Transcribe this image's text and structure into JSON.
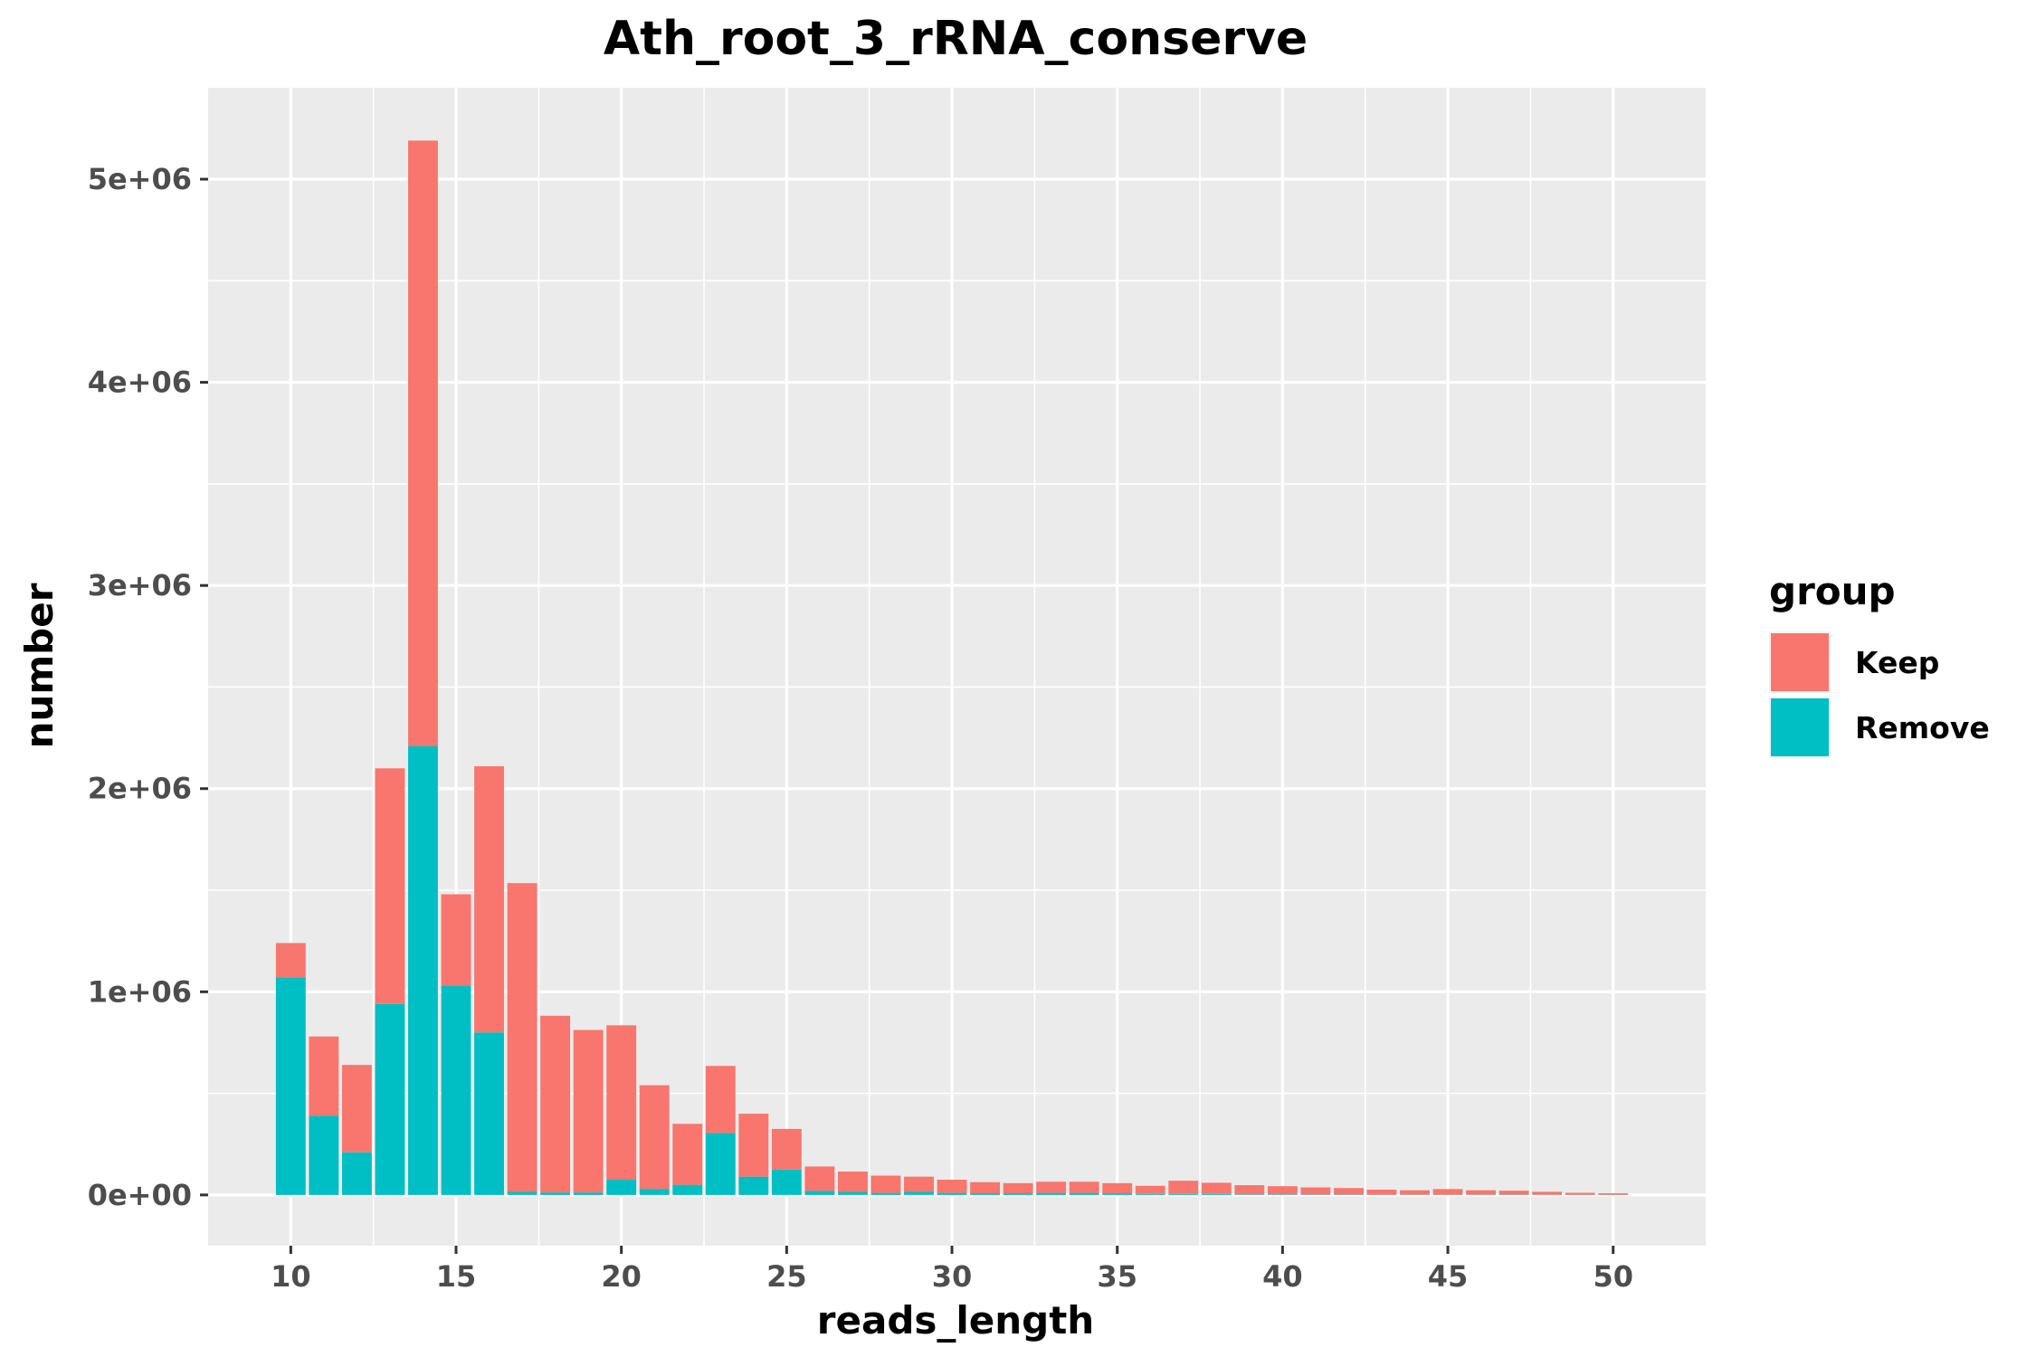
{
  "chart_data": {
    "type": "bar",
    "stacked": true,
    "title": "Ath_root_3_rRNA_conserve",
    "xlabel": "reads_length",
    "ylabel": "number",
    "x": [
      10,
      11,
      12,
      13,
      14,
      15,
      16,
      17,
      18,
      19,
      20,
      21,
      22,
      23,
      24,
      25,
      26,
      27,
      28,
      29,
      30,
      31,
      32,
      33,
      34,
      35,
      36,
      37,
      38,
      39,
      40,
      41,
      42,
      43,
      44,
      45,
      46,
      47,
      48,
      49,
      50
    ],
    "series": [
      {
        "name": "Keep",
        "color": "#F8766D",
        "values": [
          170000,
          390000,
          430000,
          1160000,
          2980000,
          450000,
          1310000,
          1520000,
          870000,
          800000,
          760000,
          510000,
          300000,
          330000,
          310000,
          200000,
          120000,
          100000,
          85000,
          75000,
          65000,
          55000,
          50000,
          55000,
          55000,
          50000,
          40000,
          65000,
          55000,
          45000,
          40000,
          35000,
          32000,
          25000,
          22000,
          28000,
          22000,
          20000,
          15000,
          10000,
          8000
        ]
      },
      {
        "name": "Remove",
        "color": "#00BFC4",
        "values": [
          1070000,
          390000,
          210000,
          940000,
          2210000,
          1030000,
          800000,
          15000,
          12000,
          12000,
          75000,
          30000,
          50000,
          305000,
          90000,
          125000,
          20000,
          15000,
          10000,
          15000,
          10000,
          8000,
          8000,
          10000,
          10000,
          8000,
          5000,
          5000,
          5000,
          3000,
          3000,
          2000,
          2000,
          1000,
          1000,
          1000,
          1000,
          1000,
          500,
          500,
          300
        ]
      }
    ],
    "xlim": [
      7.5,
      52.8
    ],
    "ylim": [
      -250000,
      5450000
    ],
    "x_ticks": [
      10,
      15,
      20,
      25,
      30,
      35,
      40,
      45,
      50
    ],
    "x_tick_labels": [
      "10",
      "15",
      "20",
      "25",
      "30",
      "35",
      "40",
      "45",
      "50"
    ],
    "y_ticks": [
      0,
      1000000,
      2000000,
      3000000,
      4000000,
      5000000
    ],
    "y_tick_labels": [
      "0e+00",
      "1e+06",
      "2e+06",
      "3e+06",
      "4e+06",
      "5e+06"
    ],
    "grid": true,
    "legend": {
      "title": "group",
      "position": "right",
      "entries": [
        "Keep",
        "Remove"
      ]
    },
    "panel_background": "#EBEBEB",
    "grid_color": "#FFFFFF"
  }
}
